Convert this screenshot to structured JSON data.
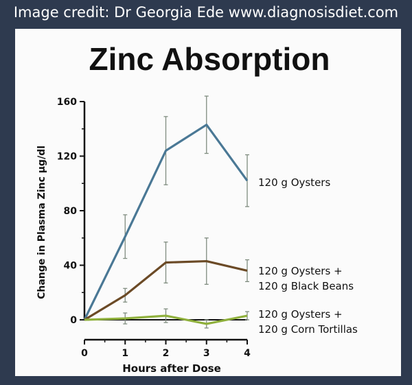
{
  "credit": "Image credit: Dr Georgia Ede www.diagnosisdiet.com",
  "colors": {
    "background": "#2e3a4f",
    "card": "#fbfbfb",
    "axis": "#111111",
    "errorbar": "#7f8c7f"
  },
  "chart_data": {
    "type": "line",
    "title": "Zinc Absorption",
    "xlabel": "Hours after Dose",
    "ylabel": "Change in Plasma Zinc μg/dl",
    "x": [
      0,
      1,
      2,
      3,
      4
    ],
    "xticks": [
      "0",
      "1",
      "2",
      "3",
      "4"
    ],
    "yticks": [
      "0",
      "40",
      "80",
      "120",
      "160"
    ],
    "xlim": [
      0,
      4
    ],
    "ylim": [
      0,
      160
    ],
    "grid": false,
    "legend": "inline-right",
    "series": [
      {
        "labels": [
          "120 g Oysters"
        ],
        "color": "#4a7895",
        "values": [
          0,
          61,
          124,
          143,
          102
        ],
        "err": [
          0,
          16,
          25,
          21,
          19
        ]
      },
      {
        "labels": [
          "120 g Oysters +",
          "120 g Black Beans"
        ],
        "color": "#6b4a26",
        "values": [
          0,
          18,
          42,
          43,
          36
        ],
        "err": [
          0,
          5,
          15,
          17,
          8
        ]
      },
      {
        "labels": [
          "120 g Oysters +",
          "120 g Corn Tortillas"
        ],
        "color": "#8fb03c",
        "values": [
          0,
          1,
          3,
          -3,
          3
        ],
        "err": [
          0,
          4,
          5,
          3,
          3
        ]
      }
    ],
    "baseline": {
      "color": "#111111",
      "values": [
        0,
        0,
        0,
        0,
        0
      ]
    }
  }
}
